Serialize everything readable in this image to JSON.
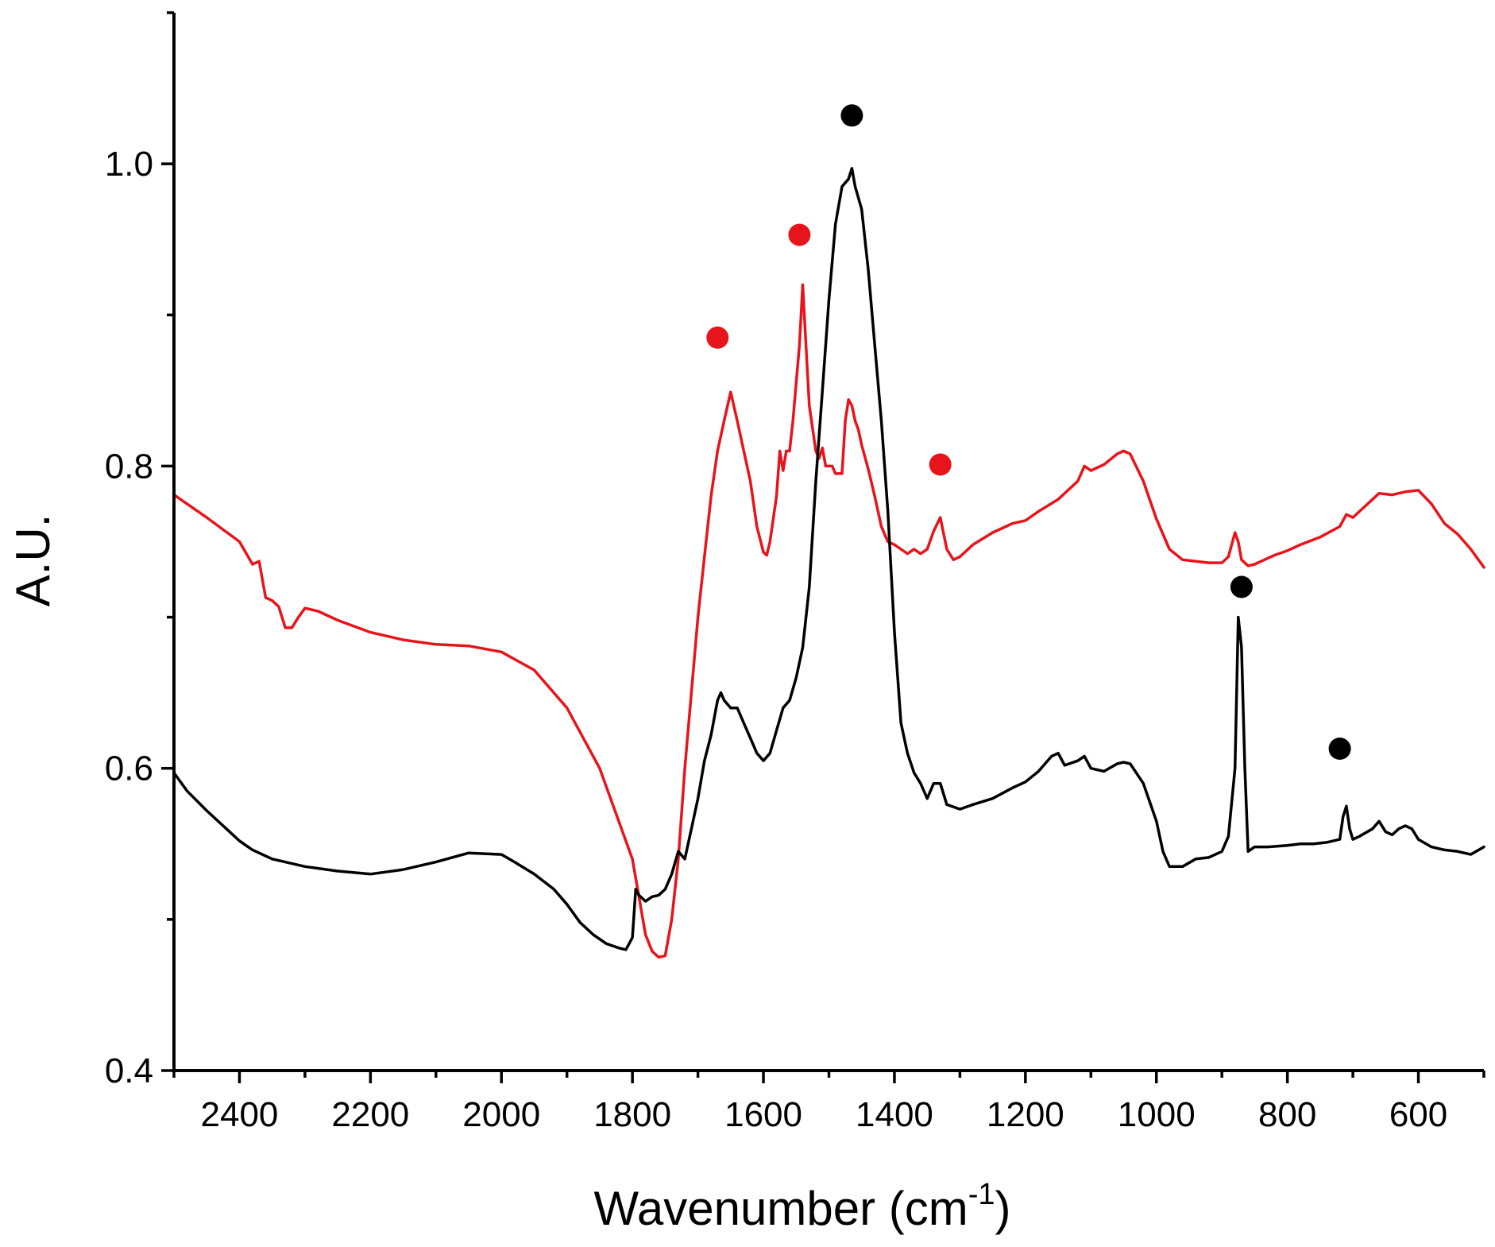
{
  "chart_data": {
    "type": "line",
    "title": "",
    "xlabel": "Wavenumber (cm",
    "xlabel_superscript": "-1",
    "xlabel_suffix": ")",
    "ylabel": "A.U.",
    "xlim": [
      2500,
      500
    ],
    "ylim": [
      0.4,
      1.1
    ],
    "x_ticks": [
      2400,
      2200,
      2000,
      1800,
      1600,
      1400,
      1200,
      1000,
      800,
      600
    ],
    "x_tick_labels": [
      "2400",
      "2200",
      "2000",
      "1800",
      "1600",
      "1400",
      "1200",
      "1000",
      "800",
      "600"
    ],
    "y_ticks": [
      0.4,
      0.6,
      0.8,
      1.0
    ],
    "y_tick_labels": [
      "0.4",
      "0.6",
      "0.8",
      "1.0"
    ],
    "grid": false,
    "series": [
      {
        "name": "red",
        "color": "#e8141b",
        "points": [
          [
            2500,
            0.781
          ],
          [
            2450,
            0.766
          ],
          [
            2400,
            0.75
          ],
          [
            2380,
            0.735
          ],
          [
            2370,
            0.737
          ],
          [
            2360,
            0.713
          ],
          [
            2350,
            0.711
          ],
          [
            2340,
            0.707
          ],
          [
            2330,
            0.693
          ],
          [
            2320,
            0.693
          ],
          [
            2310,
            0.7
          ],
          [
            2300,
            0.706
          ],
          [
            2280,
            0.704
          ],
          [
            2250,
            0.698
          ],
          [
            2200,
            0.69
          ],
          [
            2150,
            0.685
          ],
          [
            2100,
            0.682
          ],
          [
            2050,
            0.681
          ],
          [
            2000,
            0.677
          ],
          [
            1950,
            0.665
          ],
          [
            1900,
            0.64
          ],
          [
            1850,
            0.6
          ],
          [
            1800,
            0.54
          ],
          [
            1780,
            0.49
          ],
          [
            1770,
            0.479
          ],
          [
            1760,
            0.475
          ],
          [
            1750,
            0.476
          ],
          [
            1740,
            0.5
          ],
          [
            1730,
            0.54
          ],
          [
            1720,
            0.6
          ],
          [
            1700,
            0.7
          ],
          [
            1690,
            0.74
          ],
          [
            1680,
            0.78
          ],
          [
            1670,
            0.81
          ],
          [
            1660,
            0.83
          ],
          [
            1650,
            0.849
          ],
          [
            1640,
            0.83
          ],
          [
            1630,
            0.81
          ],
          [
            1620,
            0.79
          ],
          [
            1610,
            0.76
          ],
          [
            1600,
            0.743
          ],
          [
            1595,
            0.741
          ],
          [
            1590,
            0.75
          ],
          [
            1580,
            0.78
          ],
          [
            1575,
            0.81
          ],
          [
            1570,
            0.797
          ],
          [
            1565,
            0.81
          ],
          [
            1560,
            0.81
          ],
          [
            1555,
            0.83
          ],
          [
            1545,
            0.88
          ],
          [
            1540,
            0.92
          ],
          [
            1535,
            0.88
          ],
          [
            1530,
            0.84
          ],
          [
            1520,
            0.81
          ],
          [
            1515,
            0.805
          ],
          [
            1510,
            0.812
          ],
          [
            1505,
            0.8
          ],
          [
            1500,
            0.8
          ],
          [
            1495,
            0.8
          ],
          [
            1490,
            0.795
          ],
          [
            1480,
            0.795
          ],
          [
            1475,
            0.83
          ],
          [
            1470,
            0.844
          ],
          [
            1465,
            0.84
          ],
          [
            1460,
            0.83
          ],
          [
            1455,
            0.824
          ],
          [
            1450,
            0.814
          ],
          [
            1440,
            0.798
          ],
          [
            1430,
            0.78
          ],
          [
            1420,
            0.76
          ],
          [
            1410,
            0.75
          ],
          [
            1400,
            0.748
          ],
          [
            1390,
            0.745
          ],
          [
            1380,
            0.742
          ],
          [
            1370,
            0.745
          ],
          [
            1360,
            0.742
          ],
          [
            1350,
            0.745
          ],
          [
            1340,
            0.757
          ],
          [
            1330,
            0.766
          ],
          [
            1320,
            0.745
          ],
          [
            1310,
            0.738
          ],
          [
            1300,
            0.74
          ],
          [
            1280,
            0.748
          ],
          [
            1250,
            0.756
          ],
          [
            1220,
            0.762
          ],
          [
            1200,
            0.764
          ],
          [
            1180,
            0.77
          ],
          [
            1150,
            0.778
          ],
          [
            1120,
            0.79
          ],
          [
            1110,
            0.8
          ],
          [
            1100,
            0.797
          ],
          [
            1080,
            0.801
          ],
          [
            1060,
            0.808
          ],
          [
            1050,
            0.81
          ],
          [
            1040,
            0.808
          ],
          [
            1020,
            0.79
          ],
          [
            1000,
            0.765
          ],
          [
            980,
            0.745
          ],
          [
            960,
            0.738
          ],
          [
            940,
            0.737
          ],
          [
            920,
            0.736
          ],
          [
            900,
            0.736
          ],
          [
            890,
            0.74
          ],
          [
            880,
            0.756
          ],
          [
            875,
            0.75
          ],
          [
            870,
            0.738
          ],
          [
            860,
            0.734
          ],
          [
            850,
            0.735
          ],
          [
            840,
            0.737
          ],
          [
            820,
            0.741
          ],
          [
            800,
            0.744
          ],
          [
            780,
            0.748
          ],
          [
            750,
            0.753
          ],
          [
            720,
            0.76
          ],
          [
            710,
            0.768
          ],
          [
            700,
            0.766
          ],
          [
            680,
            0.774
          ],
          [
            660,
            0.782
          ],
          [
            640,
            0.781
          ],
          [
            620,
            0.783
          ],
          [
            600,
            0.784
          ],
          [
            580,
            0.775
          ],
          [
            560,
            0.762
          ],
          [
            540,
            0.755
          ],
          [
            520,
            0.745
          ],
          [
            500,
            0.733
          ]
        ]
      },
      {
        "name": "black",
        "color": "#000000",
        "points": [
          [
            2500,
            0.597
          ],
          [
            2480,
            0.585
          ],
          [
            2450,
            0.572
          ],
          [
            2420,
            0.56
          ],
          [
            2400,
            0.552
          ],
          [
            2380,
            0.546
          ],
          [
            2350,
            0.54
          ],
          [
            2300,
            0.535
          ],
          [
            2250,
            0.532
          ],
          [
            2200,
            0.53
          ],
          [
            2150,
            0.533
          ],
          [
            2100,
            0.538
          ],
          [
            2050,
            0.544
          ],
          [
            2000,
            0.543
          ],
          [
            1980,
            0.538
          ],
          [
            1950,
            0.53
          ],
          [
            1920,
            0.52
          ],
          [
            1900,
            0.51
          ],
          [
            1880,
            0.498
          ],
          [
            1860,
            0.49
          ],
          [
            1840,
            0.484
          ],
          [
            1820,
            0.481
          ],
          [
            1810,
            0.48
          ],
          [
            1800,
            0.488
          ],
          [
            1795,
            0.52
          ],
          [
            1790,
            0.516
          ],
          [
            1780,
            0.512
          ],
          [
            1770,
            0.515
          ],
          [
            1760,
            0.516
          ],
          [
            1750,
            0.52
          ],
          [
            1740,
            0.53
          ],
          [
            1730,
            0.545
          ],
          [
            1720,
            0.54
          ],
          [
            1710,
            0.56
          ],
          [
            1700,
            0.58
          ],
          [
            1690,
            0.605
          ],
          [
            1680,
            0.622
          ],
          [
            1670,
            0.645
          ],
          [
            1665,
            0.65
          ],
          [
            1660,
            0.645
          ],
          [
            1650,
            0.64
          ],
          [
            1640,
            0.64
          ],
          [
            1630,
            0.63
          ],
          [
            1620,
            0.62
          ],
          [
            1610,
            0.61
          ],
          [
            1600,
            0.605
          ],
          [
            1590,
            0.61
          ],
          [
            1580,
            0.625
          ],
          [
            1570,
            0.64
          ],
          [
            1560,
            0.645
          ],
          [
            1550,
            0.66
          ],
          [
            1540,
            0.68
          ],
          [
            1530,
            0.72
          ],
          [
            1520,
            0.79
          ],
          [
            1510,
            0.85
          ],
          [
            1500,
            0.91
          ],
          [
            1490,
            0.96
          ],
          [
            1480,
            0.985
          ],
          [
            1470,
            0.99
          ],
          [
            1465,
            0.997
          ],
          [
            1460,
            0.985
          ],
          [
            1450,
            0.97
          ],
          [
            1440,
            0.93
          ],
          [
            1430,
            0.88
          ],
          [
            1420,
            0.83
          ],
          [
            1410,
            0.77
          ],
          [
            1400,
            0.69
          ],
          [
            1390,
            0.63
          ],
          [
            1380,
            0.61
          ],
          [
            1370,
            0.597
          ],
          [
            1360,
            0.59
          ],
          [
            1350,
            0.58
          ],
          [
            1340,
            0.59
          ],
          [
            1330,
            0.59
          ],
          [
            1320,
            0.576
          ],
          [
            1300,
            0.573
          ],
          [
            1280,
            0.576
          ],
          [
            1250,
            0.58
          ],
          [
            1220,
            0.587
          ],
          [
            1200,
            0.591
          ],
          [
            1180,
            0.598
          ],
          [
            1160,
            0.608
          ],
          [
            1150,
            0.61
          ],
          [
            1140,
            0.602
          ],
          [
            1120,
            0.605
          ],
          [
            1110,
            0.608
          ],
          [
            1100,
            0.6
          ],
          [
            1080,
            0.598
          ],
          [
            1060,
            0.603
          ],
          [
            1050,
            0.604
          ],
          [
            1040,
            0.603
          ],
          [
            1020,
            0.59
          ],
          [
            1000,
            0.565
          ],
          [
            990,
            0.545
          ],
          [
            980,
            0.535
          ],
          [
            960,
            0.535
          ],
          [
            940,
            0.54
          ],
          [
            920,
            0.541
          ],
          [
            900,
            0.545
          ],
          [
            890,
            0.555
          ],
          [
            880,
            0.6
          ],
          [
            875,
            0.7
          ],
          [
            870,
            0.68
          ],
          [
            865,
            0.6
          ],
          [
            860,
            0.545
          ],
          [
            850,
            0.548
          ],
          [
            830,
            0.548
          ],
          [
            800,
            0.549
          ],
          [
            780,
            0.55
          ],
          [
            760,
            0.55
          ],
          [
            740,
            0.551
          ],
          [
            720,
            0.553
          ],
          [
            715,
            0.568
          ],
          [
            710,
            0.575
          ],
          [
            705,
            0.56
          ],
          [
            700,
            0.553
          ],
          [
            690,
            0.555
          ],
          [
            670,
            0.56
          ],
          [
            660,
            0.565
          ],
          [
            650,
            0.558
          ],
          [
            640,
            0.556
          ],
          [
            630,
            0.56
          ],
          [
            620,
            0.562
          ],
          [
            610,
            0.56
          ],
          [
            600,
            0.553
          ],
          [
            580,
            0.548
          ],
          [
            560,
            0.546
          ],
          [
            540,
            0.545
          ],
          [
            520,
            0.543
          ],
          [
            500,
            0.548
          ]
        ]
      }
    ],
    "annotations": [
      {
        "type": "marker",
        "color": "#e8141b",
        "x": 1670,
        "y": 0.885
      },
      {
        "type": "marker",
        "color": "#e8141b",
        "x": 1545,
        "y": 0.953
      },
      {
        "type": "marker",
        "color": "#e8141b",
        "x": 1330,
        "y": 0.801
      },
      {
        "type": "marker",
        "color": "#000000",
        "x": 1465,
        "y": 1.032
      },
      {
        "type": "marker",
        "color": "#000000",
        "x": 870,
        "y": 0.72
      },
      {
        "type": "marker",
        "color": "#000000",
        "x": 720,
        "y": 0.613
      }
    ]
  }
}
